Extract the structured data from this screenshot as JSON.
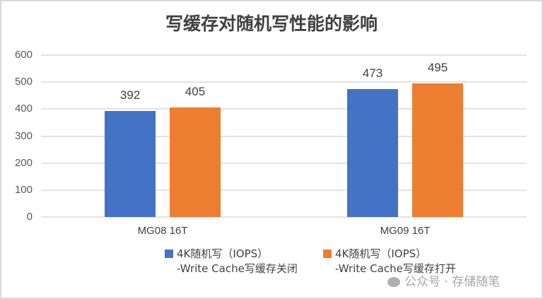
{
  "chart_data": {
    "type": "bar",
    "title": "写缓存对随机写性能的影响",
    "xlabel": "",
    "ylabel": "",
    "categories": [
      "MG08 16T",
      "MG09 16T"
    ],
    "series": [
      {
        "name": "4K随机写（IOPS）-Write Cache写缓存关闭",
        "color": "#4472c4",
        "values": [
          392,
          473
        ]
      },
      {
        "name": "4K随机写（IOPS）-Write Cache写缓存打开",
        "color": "#ed7d31",
        "values": [
          405,
          495
        ]
      }
    ],
    "ylim": [
      0,
      600
    ],
    "yticks": [
      "600",
      "500",
      "400",
      "300",
      "200",
      "100",
      "0"
    ],
    "grid": true,
    "legend_position": "bottom",
    "data_labels": [
      "392",
      "405",
      "473",
      "495"
    ]
  },
  "legend": {
    "items": [
      {
        "line1": "4K随机写（IOPS）",
        "line2": "-Write Cache写缓存关闭"
      },
      {
        "line1": "4K随机写（IOPS）",
        "line2": "-Write Cache写缓存打开"
      }
    ]
  },
  "watermark": "公众号 · 存储随笔"
}
